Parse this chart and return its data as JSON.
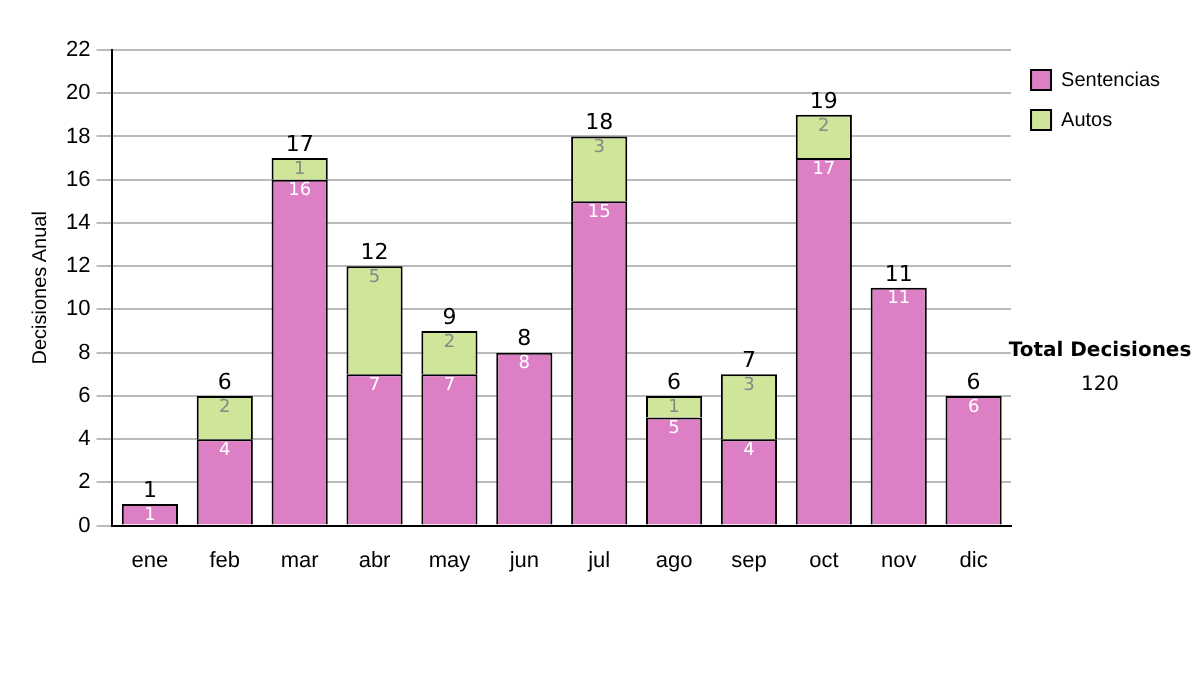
{
  "chart_data": {
    "type": "bar",
    "stacked": true,
    "ylabel": "Decisiones Anual",
    "categories": [
      "ene",
      "feb",
      "mar",
      "abr",
      "may",
      "jun",
      "jul",
      "ago",
      "sep",
      "oct",
      "nov",
      "dic"
    ],
    "series": [
      {
        "name": "Sentencias",
        "color": "#dd7fc4",
        "values": [
          1,
          4,
          16,
          7,
          7,
          8,
          15,
          5,
          4,
          17,
          11,
          6
        ],
        "value_labels": [
          "1",
          "4",
          "16",
          "7",
          "7",
          "8",
          "15",
          "5",
          "4",
          "17",
          "11",
          "6"
        ]
      },
      {
        "name": "Autos",
        "color": "#cfe69a",
        "values": [
          0,
          2,
          1,
          5,
          2,
          0,
          3,
          1,
          3,
          2,
          0,
          0
        ],
        "value_labels": [
          null,
          "2",
          "1",
          "5",
          "2",
          null,
          "3",
          "1",
          "3",
          "2",
          null,
          null
        ]
      }
    ],
    "totals": [
      "1",
      "6",
      "17",
      "12",
      "9",
      "8",
      "18",
      "6",
      "7",
      "19",
      "11",
      "6"
    ],
    "ylim": [
      0,
      22
    ],
    "yticks": [
      0,
      2,
      4,
      6,
      8,
      10,
      12,
      14,
      16,
      18,
      20,
      22
    ],
    "grid": "y",
    "legend": "right",
    "annotations": [
      "Total Decisiones",
      "120"
    ]
  }
}
